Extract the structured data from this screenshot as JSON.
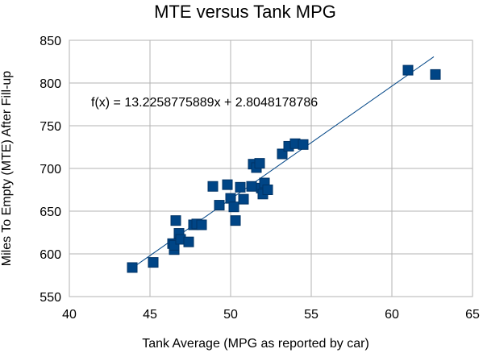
{
  "chart_data": {
    "type": "scatter",
    "title": "MTE versus Tank MPG",
    "xlabel": "Tank Average (MPG as reported by car)",
    "ylabel": "Miles To Empty (MTE) After Fill-up",
    "xlim": [
      40,
      65
    ],
    "ylim": [
      550,
      850
    ],
    "x_ticks": [
      "40",
      "45",
      "50",
      "55",
      "60",
      "65"
    ],
    "y_ticks": [
      "550",
      "600",
      "650",
      "700",
      "750",
      "800",
      "850"
    ],
    "grid": true,
    "marker_color": "#004586",
    "trendline": {
      "label": "f(x) = 13.2258775889x + 2.8048178786",
      "slope": 13.2258775889,
      "intercept": 2.8048178786,
      "x_range": [
        43.9,
        62.6
      ],
      "color": "#004586"
    },
    "points": [
      {
        "x": 43.9,
        "y": 584
      },
      {
        "x": 45.2,
        "y": 590
      },
      {
        "x": 46.4,
        "y": 612
      },
      {
        "x": 46.5,
        "y": 605
      },
      {
        "x": 46.5,
        "y": 610
      },
      {
        "x": 46.6,
        "y": 639
      },
      {
        "x": 46.8,
        "y": 624
      },
      {
        "x": 46.9,
        "y": 617
      },
      {
        "x": 47.4,
        "y": 614
      },
      {
        "x": 47.7,
        "y": 634
      },
      {
        "x": 47.9,
        "y": 635
      },
      {
        "x": 48.2,
        "y": 634
      },
      {
        "x": 48.9,
        "y": 679
      },
      {
        "x": 49.3,
        "y": 657
      },
      {
        "x": 49.8,
        "y": 681
      },
      {
        "x": 50.0,
        "y": 665
      },
      {
        "x": 50.2,
        "y": 655
      },
      {
        "x": 50.3,
        "y": 639
      },
      {
        "x": 50.6,
        "y": 678
      },
      {
        "x": 50.8,
        "y": 664
      },
      {
        "x": 51.3,
        "y": 679
      },
      {
        "x": 51.4,
        "y": 705
      },
      {
        "x": 51.6,
        "y": 701
      },
      {
        "x": 51.8,
        "y": 706
      },
      {
        "x": 51.9,
        "y": 677
      },
      {
        "x": 52.0,
        "y": 670
      },
      {
        "x": 52.1,
        "y": 683
      },
      {
        "x": 52.3,
        "y": 675
      },
      {
        "x": 53.2,
        "y": 717
      },
      {
        "x": 53.6,
        "y": 726
      },
      {
        "x": 54.0,
        "y": 729
      },
      {
        "x": 54.5,
        "y": 728
      },
      {
        "x": 61.0,
        "y": 815
      },
      {
        "x": 62.7,
        "y": 810
      }
    ]
  }
}
